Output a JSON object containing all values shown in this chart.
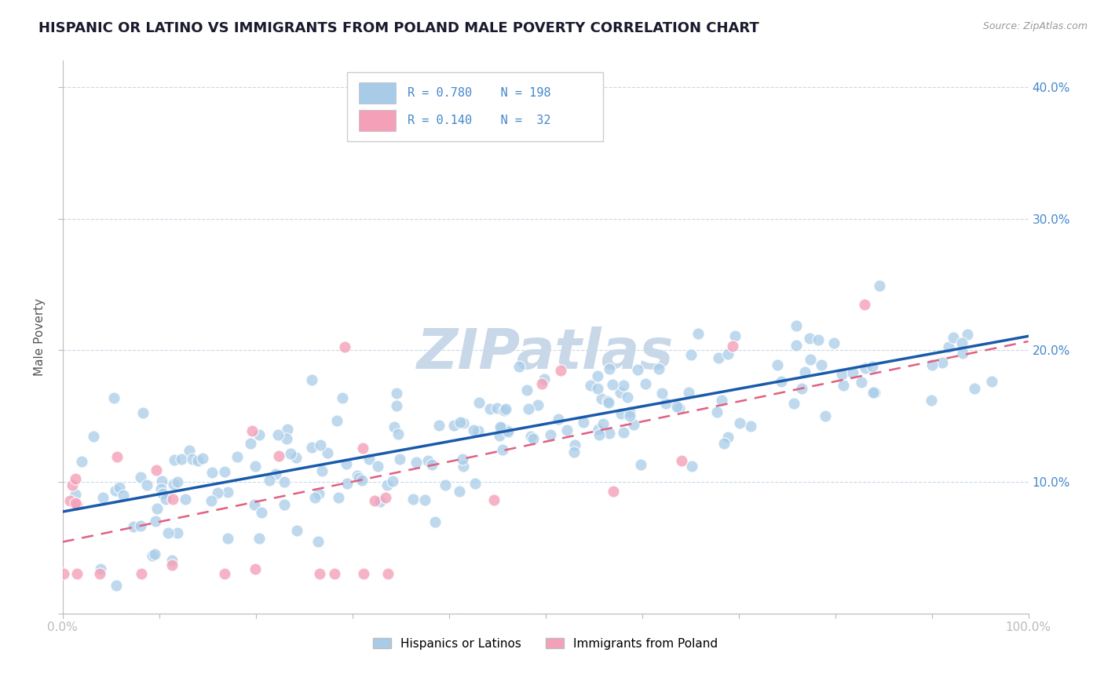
{
  "title": "HISPANIC OR LATINO VS IMMIGRANTS FROM POLAND MALE POVERTY CORRELATION CHART",
  "source": "Source: ZipAtlas.com",
  "ylabel": "Male Poverty",
  "x_min": 0.0,
  "x_max": 1.0,
  "y_min": 0.0,
  "y_max": 0.42,
  "x_ticks": [
    0.0,
    0.1,
    0.2,
    0.3,
    0.4,
    0.5,
    0.6,
    0.7,
    0.8,
    0.9,
    1.0
  ],
  "y_ticks": [
    0.0,
    0.1,
    0.2,
    0.3,
    0.4
  ],
  "y_tick_labels": [
    "",
    "10.0%",
    "20.0%",
    "30.0%",
    "40.0%"
  ],
  "title_color": "#1a1a2e",
  "title_fontsize": 13,
  "watermark_text": "ZIPatlas",
  "watermark_color": "#c8d8e8",
  "watermark_fontsize": 52,
  "blue_scatter_color": "#a8cce8",
  "blue_line_color": "#1a5aaa",
  "pink_scatter_color": "#f4a0b8",
  "pink_line_color": "#e06080",
  "r_blue": 0.78,
  "n_blue": 198,
  "r_pink": 0.14,
  "n_pink": 32,
  "legend_label_blue": "Hispanics or Latinos",
  "legend_label_pink": "Immigrants from Poland",
  "axis_label_color": "#4488cc",
  "background_color": "#ffffff",
  "grid_color": "#c8d8e8",
  "seed_blue": 42,
  "seed_pink": 99
}
